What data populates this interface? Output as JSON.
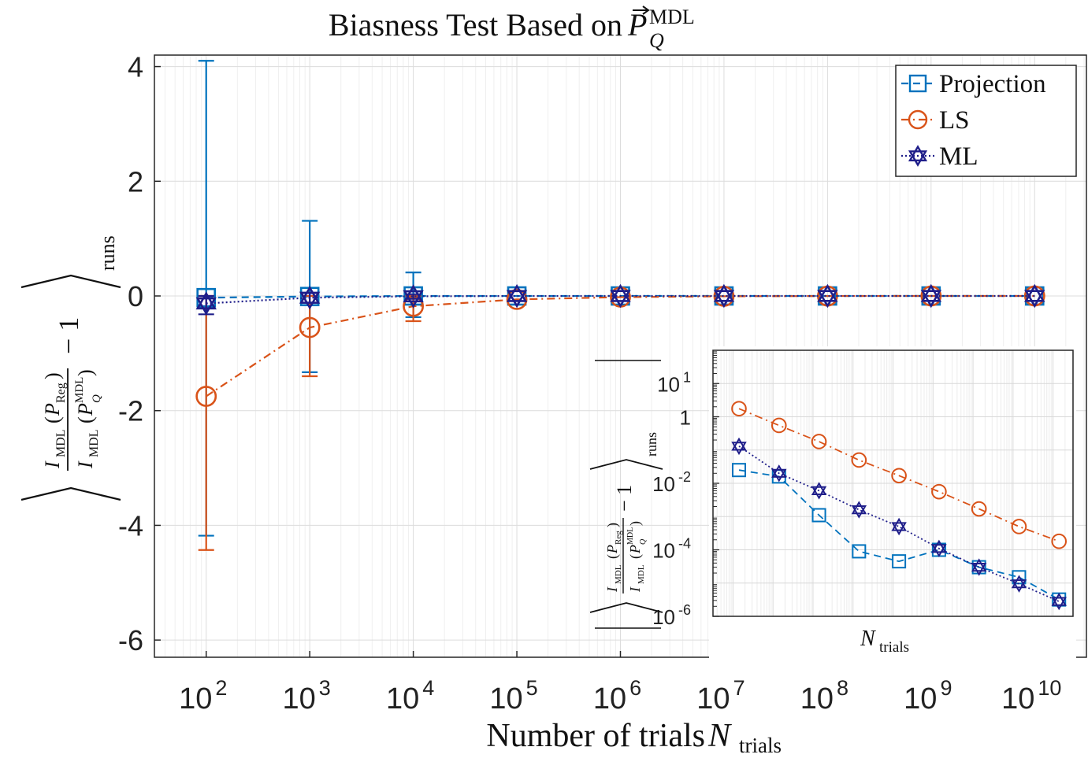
{
  "chart_data": [
    {
      "type": "line",
      "role": "main",
      "title": "Biasness Test Based on P_Q^MDL",
      "title_main": "Biasness Test Based on ",
      "title_symbol": "P",
      "title_sup": "MDL",
      "title_sub": "Q",
      "xlabel": "Number of trials ",
      "xlabel_symbol": "N",
      "xlabel_sub": "trials",
      "ylabel": "⟨ I_MDL(P_Reg) / I_MDL(P_Q^MDL) − 1 ⟩_runs",
      "ylabel_parts": {
        "num_fn": "I",
        "num_fn_sub": "MDL",
        "num_arg": "P",
        "num_arg_sub": "Reg",
        "den_fn": "I",
        "den_fn_sub": "MDL",
        "den_arg": "P",
        "den_arg_sup": "MDL",
        "den_arg_sub": "Q",
        "minus_one": "− 1",
        "runs": "runs"
      },
      "x_scale": "log",
      "xlim_exp": [
        1.5,
        10.5
      ],
      "ylim": [
        -6.3,
        4.2
      ],
      "x_ticks": [
        {
          "base": "10",
          "exp": "2"
        },
        {
          "base": "10",
          "exp": "3"
        },
        {
          "base": "10",
          "exp": "4"
        },
        {
          "base": "10",
          "exp": "5"
        },
        {
          "base": "10",
          "exp": "6"
        },
        {
          "base": "10",
          "exp": "7"
        },
        {
          "base": "10",
          "exp": "8"
        },
        {
          "base": "10",
          "exp": "9"
        },
        {
          "base": "10",
          "exp": "10"
        }
      ],
      "y_ticks": [
        "4",
        "2",
        "0",
        "-2",
        "-4",
        "-6"
      ],
      "grid": true,
      "legend_position": "top-right",
      "x_exp": [
        2,
        3,
        4,
        5,
        6,
        7,
        8,
        9,
        10
      ],
      "series": [
        {
          "name": "Projection",
          "color": "#0072BD",
          "marker": "square",
          "line": "dashed",
          "values": [
            -0.03,
            -0.01,
            0.0,
            0.0,
            0.0,
            0.0,
            0.0,
            0.0,
            0.0
          ],
          "err_low": [
            -4.18,
            -1.33,
            -0.37,
            0.0,
            0.0,
            0.0,
            0.0,
            0.0,
            0.0
          ],
          "err_high": [
            4.1,
            1.31,
            0.41,
            0.0,
            0.0,
            0.0,
            0.0,
            0.0,
            0.0
          ]
        },
        {
          "name": "LS",
          "color": "#D95319",
          "marker": "circle",
          "line": "dashdot",
          "values": [
            -1.75,
            -0.55,
            -0.18,
            -0.06,
            -0.02,
            -0.006,
            -0.002,
            -0.0005,
            -0.0002
          ],
          "err_low": [
            -4.43,
            -1.4,
            -0.44,
            -0.06,
            -0.02,
            -0.006,
            -0.002,
            -0.0005,
            -0.0002
          ],
          "err_high": [
            0.0,
            0.0,
            0.0,
            -0.06,
            -0.02,
            -0.006,
            -0.002,
            -0.0005,
            -0.0002
          ]
        },
        {
          "name": "ML",
          "color": "#1F1E8A",
          "marker": "hexagram",
          "line": "dotted",
          "values": [
            -0.13,
            -0.03,
            -0.006,
            -0.0015,
            -0.0004,
            -0.0001,
            -3e-05,
            -1e-05,
            -3e-06
          ],
          "err_low": [
            -0.32,
            -0.12,
            -0.05,
            -0.0015,
            -0.0004,
            -0.0001,
            -3e-05,
            -1e-05,
            -3e-06
          ],
          "err_high": [
            0.0,
            0.05,
            0.03,
            -0.0015,
            -0.0004,
            -0.0001,
            -3e-05,
            -1e-05,
            -3e-06
          ]
        }
      ]
    },
    {
      "type": "line",
      "role": "inset",
      "xlabel_symbol": "N",
      "xlabel_sub": "trials",
      "ylabel": "| ⟨ I_MDL(P_Reg) / I_MDL(P_Q^MDL) − 1 ⟩_runs |",
      "x_scale": "log",
      "y_scale": "log",
      "xlim_exp": [
        1.5,
        10.5
      ],
      "ylim_exp": [
        -6,
        2
      ],
      "y_ticks": [
        {
          "base": "10",
          "exp": "1"
        },
        {
          "base": "1",
          "exp": ""
        },
        {
          "base": "10",
          "exp": "-2"
        },
        {
          "base": "10",
          "exp": "-4"
        },
        {
          "base": "10",
          "exp": "-6"
        }
      ],
      "y_tick_exp_values": [
        1,
        0,
        -2,
        -4,
        -6
      ],
      "grid": true,
      "x_exp": [
        2,
        3,
        4,
        5,
        6,
        7,
        8,
        9,
        10
      ],
      "series": [
        {
          "name": "Projection",
          "color": "#0072BD",
          "marker": "square",
          "line": "dashed",
          "values": [
            0.025,
            0.016,
            0.0011,
            9e-05,
            4.5e-05,
            0.0001,
            3e-05,
            1.5e-05,
            3.2e-06
          ]
        },
        {
          "name": "LS",
          "color": "#D95319",
          "marker": "circle",
          "line": "dashdot",
          "values": [
            1.75,
            0.55,
            0.18,
            0.05,
            0.017,
            0.0056,
            0.0017,
            0.0005,
            0.00018
          ]
        },
        {
          "name": "ML",
          "color": "#1F1E8A",
          "marker": "hexagram",
          "line": "dotted",
          "values": [
            0.13,
            0.02,
            0.006,
            0.0016,
            0.0005,
            0.00011,
            3e-05,
            9.5e-06,
            2.8e-06
          ]
        }
      ]
    }
  ]
}
